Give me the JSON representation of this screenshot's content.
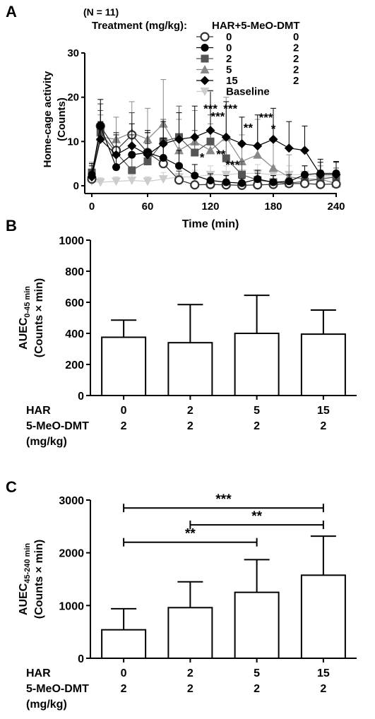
{
  "chart_data": [
    {
      "panel": "A",
      "type": "line",
      "n_label": "(N = 11)",
      "xlabel": "Time (min)",
      "ylabel": "Home-cage activity",
      "ylabel_unit": "(Counts)",
      "xlim": [
        0,
        240
      ],
      "ylim": [
        0,
        30
      ],
      "x_ticks": [
        "0",
        "60",
        "120",
        "180",
        "240"
      ],
      "y_ticks": [
        "0",
        "10",
        "20",
        "30"
      ],
      "legend_header_left": "Treatment (mg/kg):",
      "legend_header_right": "HAR+5-MeO-DMT",
      "legend": [
        {
          "har": "0",
          "dmt": "0",
          "marker": "open-circle",
          "color": "#333333"
        },
        {
          "har": "0",
          "dmt": "2",
          "marker": "filled-circle",
          "color": "#000000"
        },
        {
          "har": "2",
          "dmt": "2",
          "marker": "square",
          "color": "#555555"
        },
        {
          "har": "5",
          "dmt": "2",
          "marker": "triangle-up",
          "color": "#888888"
        },
        {
          "har": "15",
          "dmt": "2",
          "marker": "diamond",
          "color": "#000000"
        },
        {
          "har": "Baseline",
          "dmt": "",
          "marker": "triangle-down",
          "color": "#cccccc"
        }
      ],
      "x": [
        0,
        15,
        30,
        45,
        60,
        75,
        90,
        105,
        120,
        135,
        150,
        165,
        180,
        195,
        210,
        225,
        240
      ],
      "series": [
        {
          "values": [
            1.5,
            13.5,
            8.0,
            11.5,
            7.5,
            5.0,
            1.3,
            0.2,
            0.3,
            0.2,
            0.1,
            0.2,
            0.3,
            0.5,
            0.5,
            0.3,
            0.4
          ],
          "errors": [
            2.0,
            5.0,
            4.0,
            5.0,
            4.5,
            4.0,
            2.0,
            0.5,
            0.6,
            0.5,
            0.4,
            0.5,
            0.6,
            0.8,
            0.8,
            0.8,
            0.8
          ]
        },
        {
          "values": [
            2.5,
            13.5,
            4.2,
            7.0,
            7.5,
            6.3,
            4.5,
            2.3,
            1.2,
            0.8,
            0.6,
            1.5,
            0.8,
            1.0,
            2.5,
            2.8,
            2.8
          ],
          "errors": [
            2.5,
            6.0,
            3.0,
            4.5,
            5.0,
            4.5,
            3.5,
            2.5,
            1.5,
            1.5,
            1.0,
            2.0,
            1.5,
            1.5,
            2.0,
            2.5,
            2.5
          ]
        },
        {
          "values": [
            3.0,
            12.0,
            7.5,
            3.5,
            5.5,
            10.0,
            11.0,
            7.5,
            10.0,
            6.2,
            2.5,
            1.3,
            0.8,
            0.6,
            1.0,
            1.5,
            2.0
          ],
          "errors": [
            2.0,
            5.0,
            4.5,
            3.5,
            4.0,
            5.0,
            7.0,
            5.0,
            6.0,
            5.0,
            3.0,
            1.5,
            1.5,
            1.0,
            1.5,
            2.0,
            2.0
          ]
        },
        {
          "values": [
            2.8,
            11.0,
            10.5,
            12.0,
            10.5,
            14.0,
            8.0,
            10.0,
            8.0,
            11.0,
            5.5,
            7.0,
            4.0,
            2.0,
            1.5,
            1.5,
            0.5
          ],
          "errors": [
            2.5,
            5.0,
            5.0,
            7.0,
            7.0,
            10.0,
            7.0,
            7.0,
            6.0,
            9.0,
            6.0,
            8.0,
            6.0,
            5.0,
            3.0,
            3.0,
            2.0
          ]
        },
        {
          "values": [
            2.0,
            10.5,
            7.0,
            9.0,
            7.0,
            9.5,
            10.5,
            11.0,
            12.5,
            11.0,
            9.5,
            9.0,
            10.5,
            8.5,
            8.0,
            2.5,
            2.5
          ],
          "errors": [
            2.5,
            4.0,
            4.5,
            5.0,
            5.0,
            5.0,
            6.0,
            7.0,
            9.0,
            8.0,
            6.0,
            7.0,
            7.0,
            6.0,
            5.5,
            3.5,
            3.0
          ]
        },
        {
          "values": [
            1.0,
            0.8,
            1.0,
            1.2,
            1.0,
            1.5,
            2.0,
            2.0,
            2.5,
            2.5,
            2.8,
            2.8,
            2.5,
            2.5,
            2.5,
            2.0,
            2.0
          ],
          "errors": [
            1.0,
            1.0,
            1.0,
            1.2,
            1.0,
            1.5,
            1.5,
            1.5,
            2.0,
            2.0,
            2.0,
            2.0,
            2.0,
            2.0,
            2.0,
            1.5,
            1.5
          ]
        }
      ],
      "significance": [
        {
          "text": "***",
          "x": 120,
          "y": 16.5
        },
        {
          "text": "***",
          "x": 139,
          "y": 16.5
        },
        {
          "text": "***",
          "x": 127,
          "y": 14.8
        },
        {
          "text": "*",
          "x": 112,
          "y": 5.5
        },
        {
          "text": "**",
          "x": 130,
          "y": 6.2
        },
        {
          "text": "***",
          "x": 141,
          "y": 3.8
        },
        {
          "text": "**",
          "x": 156,
          "y": 12.2
        },
        {
          "text": "***",
          "x": 173,
          "y": 14.5
        },
        {
          "text": "*",
          "x": 180,
          "y": 12.0
        }
      ]
    },
    {
      "panel": "B",
      "type": "bar",
      "ylabel_main": "AUEC",
      "ylabel_sub": "0-45 min",
      "ylabel_unit": "(Counts × min)",
      "ylim": [
        0,
        1000
      ],
      "y_ticks": [
        "0",
        "200",
        "400",
        "600",
        "800",
        "1000"
      ],
      "row_labels": [
        "HAR",
        "5-MeO-DMT",
        "(mg/kg)"
      ],
      "categories_har": [
        "0",
        "2",
        "5",
        "15"
      ],
      "categories_dmt": [
        "2",
        "2",
        "2",
        "2"
      ],
      "values": [
        375,
        340,
        400,
        395
      ],
      "errors": [
        110,
        245,
        245,
        155
      ]
    },
    {
      "panel": "C",
      "type": "bar",
      "ylabel_main": "AUEC",
      "ylabel_sub": "45-240 min",
      "ylabel_unit": "(Counts × min)",
      "ylim": [
        0,
        3000
      ],
      "y_ticks": [
        "0",
        "1000",
        "2000",
        "3000"
      ],
      "row_labels": [
        "HAR",
        "5-MeO-DMT",
        "(mg/kg)"
      ],
      "categories_har": [
        "0",
        "2",
        "5",
        "15"
      ],
      "categories_dmt": [
        "2",
        "2",
        "2",
        "2"
      ],
      "values": [
        540,
        960,
        1250,
        1575
      ],
      "errors": [
        400,
        490,
        620,
        740
      ],
      "brackets": [
        {
          "from": 0,
          "to": 3,
          "y": 2850,
          "text": "***"
        },
        {
          "from": 1,
          "to": 3,
          "y": 2530,
          "text": "**"
        },
        {
          "from": 0,
          "to": 2,
          "y": 2200,
          "text": "**"
        }
      ]
    }
  ]
}
